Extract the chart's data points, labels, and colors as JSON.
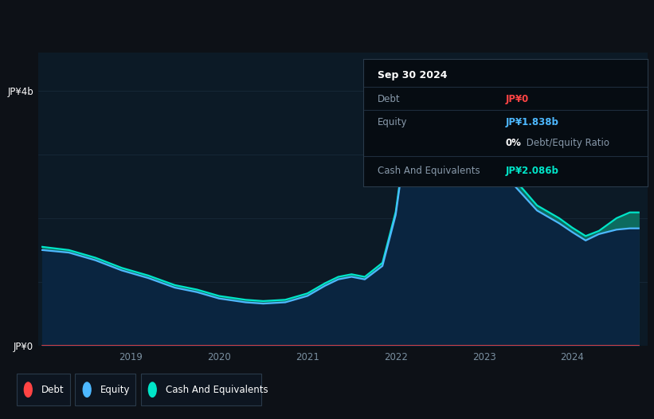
{
  "bg_color": "#0d1117",
  "chart_bg_color": "#0c1a26",
  "grid_color": "#1a2d3d",
  "y_label_top": "JP¥4b",
  "y_label_bottom": "JP¥0",
  "x_ticks": [
    "2019",
    "2020",
    "2021",
    "2022",
    "2023",
    "2024"
  ],
  "x_tick_positions": [
    2019,
    2020,
    2021,
    2022,
    2023,
    2024
  ],
  "debt_line_color": "#ff4444",
  "equity_line_color": "#4db8ff",
  "cash_line_color": "#00e5c8",
  "cash_fill_color": "#0d6b5e",
  "equity_fill_color": "#0a2540",
  "title_box": {
    "date": "Sep 30 2024",
    "debt_label": "Debt",
    "debt_value": "JP¥0",
    "debt_color": "#ff4444",
    "equity_label": "Equity",
    "equity_value": "JP¥1.838b",
    "equity_color": "#4db8ff",
    "ratio_pct": "0%",
    "ratio_rest": " Debt/Equity Ratio",
    "cash_label": "Cash And Equivalents",
    "cash_value": "JP¥2.086b",
    "cash_color": "#00e5c8"
  },
  "legend_items": [
    {
      "label": "Debt",
      "color": "#ff4444"
    },
    {
      "label": "Equity",
      "color": "#4db8ff"
    },
    {
      "label": "Cash And Equivalents",
      "color": "#00e5c8"
    }
  ],
  "x_data": [
    2018.0,
    2018.3,
    2018.6,
    2018.9,
    2019.2,
    2019.5,
    2019.75,
    2020.0,
    2020.3,
    2020.5,
    2020.75,
    2021.0,
    2021.2,
    2021.35,
    2021.5,
    2021.65,
    2021.85,
    2022.0,
    2022.15,
    2022.4,
    2022.65,
    2022.9,
    2023.1,
    2023.35,
    2023.6,
    2023.85,
    2024.0,
    2024.15,
    2024.3,
    2024.5,
    2024.65,
    2024.75
  ],
  "cash_data": [
    1.55,
    1.5,
    1.38,
    1.22,
    1.1,
    0.95,
    0.88,
    0.78,
    0.72,
    0.7,
    0.72,
    0.82,
    0.98,
    1.08,
    1.12,
    1.08,
    1.3,
    2.1,
    3.6,
    4.2,
    3.9,
    3.55,
    3.1,
    2.6,
    2.2,
    2.0,
    1.85,
    1.72,
    1.8,
    2.0,
    2.09,
    2.09
  ],
  "equity_data": [
    1.5,
    1.46,
    1.34,
    1.18,
    1.06,
    0.91,
    0.84,
    0.74,
    0.68,
    0.66,
    0.68,
    0.78,
    0.94,
    1.04,
    1.08,
    1.04,
    1.25,
    2.05,
    3.55,
    4.1,
    3.8,
    3.45,
    3.0,
    2.5,
    2.12,
    1.92,
    1.78,
    1.65,
    1.75,
    1.82,
    1.84,
    1.84
  ],
  "debt_data": [
    0.0,
    0.0,
    0.0,
    0.0,
    0.0,
    0.0,
    0.0,
    0.0,
    0.0,
    0.0,
    0.0,
    0.0,
    0.0,
    0.0,
    0.0,
    0.0,
    0.0,
    0.0,
    0.0,
    0.0,
    0.0,
    0.0,
    0.0,
    0.0,
    0.0,
    0.0,
    0.0,
    0.0,
    0.0,
    0.0,
    0.0,
    0.0
  ],
  "ylim": [
    0,
    4.6
  ],
  "xlim": [
    2017.95,
    2024.85
  ]
}
